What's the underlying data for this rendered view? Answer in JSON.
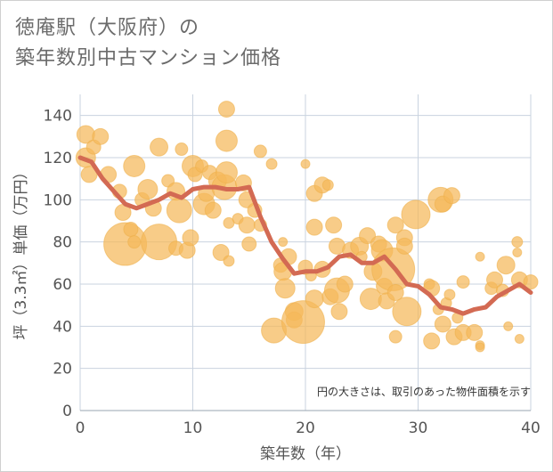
{
  "title_line1": "徳庵駅（大阪府）の",
  "title_line2": "築年数別中古マンション価格",
  "chart_data": {
    "type": "scatter",
    "xlabel": "築年数（年）",
    "ylabel": "坪（3.3㎡）単価（万円）",
    "xlim": [
      0,
      40
    ],
    "ylim": [
      0,
      150
    ],
    "xticks": [
      0,
      10,
      20,
      30,
      40
    ],
    "yticks": [
      0,
      20,
      40,
      60,
      80,
      100,
      120,
      140
    ],
    "grid": true,
    "note": "円の大きさは、取引のあった物件面積を示す",
    "bubble_color": "#f5b95a",
    "line_color": "#d36a53",
    "bubbles": [
      {
        "x": 0.5,
        "y": 131,
        "s": 10
      },
      {
        "x": 0.5,
        "y": 120,
        "s": 11
      },
      {
        "x": 0.8,
        "y": 112,
        "s": 9
      },
      {
        "x": 1.2,
        "y": 125,
        "s": 8
      },
      {
        "x": 1.8,
        "y": 130,
        "s": 9
      },
      {
        "x": 2.5,
        "y": 112,
        "s": 9
      },
      {
        "x": 3.5,
        "y": 104,
        "s": 8
      },
      {
        "x": 3.8,
        "y": 94,
        "s": 9
      },
      {
        "x": 4.0,
        "y": 79,
        "s": 24
      },
      {
        "x": 4.5,
        "y": 86,
        "s": 8
      },
      {
        "x": 4.8,
        "y": 80,
        "s": 7
      },
      {
        "x": 4.8,
        "y": 116,
        "s": 12
      },
      {
        "x": 5.5,
        "y": 100,
        "s": 8
      },
      {
        "x": 6.0,
        "y": 105,
        "s": 11
      },
      {
        "x": 6.5,
        "y": 96,
        "s": 9
      },
      {
        "x": 7.0,
        "y": 125,
        "s": 10
      },
      {
        "x": 7.0,
        "y": 80,
        "s": 20
      },
      {
        "x": 7.8,
        "y": 109,
        "s": 7
      },
      {
        "x": 8.5,
        "y": 104,
        "s": 10
      },
      {
        "x": 8.8,
        "y": 95,
        "s": 14
      },
      {
        "x": 8.5,
        "y": 77,
        "s": 8
      },
      {
        "x": 9.0,
        "y": 124,
        "s": 7
      },
      {
        "x": 9.5,
        "y": 76,
        "s": 9
      },
      {
        "x": 9.8,
        "y": 82,
        "s": 9
      },
      {
        "x": 10.0,
        "y": 116,
        "s": 12
      },
      {
        "x": 10.2,
        "y": 112,
        "s": 8
      },
      {
        "x": 10.8,
        "y": 116,
        "s": 7
      },
      {
        "x": 11.0,
        "y": 98,
        "s": 12
      },
      {
        "x": 11.2,
        "y": 103,
        "s": 9
      },
      {
        "x": 11.5,
        "y": 113,
        "s": 8
      },
      {
        "x": 11.8,
        "y": 95,
        "s": 9
      },
      {
        "x": 12.2,
        "y": 109,
        "s": 10
      },
      {
        "x": 12.5,
        "y": 75,
        "s": 9
      },
      {
        "x": 12.8,
        "y": 106,
        "s": 14
      },
      {
        "x": 13.0,
        "y": 143,
        "s": 9
      },
      {
        "x": 13.0,
        "y": 128,
        "s": 12
      },
      {
        "x": 13.0,
        "y": 113,
        "s": 12
      },
      {
        "x": 13.2,
        "y": 89,
        "s": 6
      },
      {
        "x": 13.2,
        "y": 71,
        "s": 6
      },
      {
        "x": 14.0,
        "y": 91,
        "s": 6
      },
      {
        "x": 14.5,
        "y": 108,
        "s": 9
      },
      {
        "x": 14.8,
        "y": 100,
        "s": 9
      },
      {
        "x": 14.8,
        "y": 88,
        "s": 9
      },
      {
        "x": 15.0,
        "y": 79,
        "s": 8
      },
      {
        "x": 15.5,
        "y": 95,
        "s": 8
      },
      {
        "x": 16.0,
        "y": 123,
        "s": 7
      },
      {
        "x": 16.0,
        "y": 88,
        "s": 7
      },
      {
        "x": 17.0,
        "y": 117,
        "s": 6
      },
      {
        "x": 17.2,
        "y": 38,
        "s": 14
      },
      {
        "x": 17.8,
        "y": 69,
        "s": 8
      },
      {
        "x": 18.0,
        "y": 80,
        "s": 5
      },
      {
        "x": 18.0,
        "y": 66,
        "s": 10
      },
      {
        "x": 18.2,
        "y": 58,
        "s": 11
      },
      {
        "x": 18.5,
        "y": 73,
        "s": 9
      },
      {
        "x": 19.0,
        "y": 47,
        "s": 10
      },
      {
        "x": 19.0,
        "y": 43,
        "s": 9
      },
      {
        "x": 19.8,
        "y": 42,
        "s": 24
      },
      {
        "x": 20.0,
        "y": 117,
        "s": 5
      },
      {
        "x": 20.0,
        "y": 68,
        "s": 8
      },
      {
        "x": 20.5,
        "y": 64,
        "s": 6
      },
      {
        "x": 20.8,
        "y": 103,
        "s": 9
      },
      {
        "x": 20.8,
        "y": 87,
        "s": 9
      },
      {
        "x": 20.8,
        "y": 53,
        "s": 10
      },
      {
        "x": 21.5,
        "y": 107,
        "s": 9
      },
      {
        "x": 21.5,
        "y": 67,
        "s": 9
      },
      {
        "x": 22.0,
        "y": 107,
        "s": 6
      },
      {
        "x": 22.2,
        "y": 54,
        "s": 9
      },
      {
        "x": 22.5,
        "y": 88,
        "s": 9
      },
      {
        "x": 22.8,
        "y": 78,
        "s": 9
      },
      {
        "x": 22.8,
        "y": 57,
        "s": 14
      },
      {
        "x": 23.0,
        "y": 47,
        "s": 9
      },
      {
        "x": 23.5,
        "y": 60,
        "s": 9
      },
      {
        "x": 24.0,
        "y": 76,
        "s": 9
      },
      {
        "x": 24.8,
        "y": 78,
        "s": 10
      },
      {
        "x": 25.0,
        "y": 73,
        "s": 6
      },
      {
        "x": 25.5,
        "y": 83,
        "s": 9
      },
      {
        "x": 25.8,
        "y": 53,
        "s": 12
      },
      {
        "x": 26.0,
        "y": 66,
        "s": 10
      },
      {
        "x": 26.5,
        "y": 79,
        "s": 9
      },
      {
        "x": 26.8,
        "y": 76,
        "s": 12
      },
      {
        "x": 27.0,
        "y": 59,
        "s": 9
      },
      {
        "x": 27.2,
        "y": 52,
        "s": 9
      },
      {
        "x": 27.8,
        "y": 67,
        "s": 24
      },
      {
        "x": 28.0,
        "y": 88,
        "s": 9
      },
      {
        "x": 28.0,
        "y": 56,
        "s": 9
      },
      {
        "x": 28.0,
        "y": 35,
        "s": 7
      },
      {
        "x": 28.8,
        "y": 82,
        "s": 9
      },
      {
        "x": 28.8,
        "y": 78,
        "s": 9
      },
      {
        "x": 29.0,
        "y": 47,
        "s": 16
      },
      {
        "x": 29.8,
        "y": 93,
        "s": 16
      },
      {
        "x": 31.0,
        "y": 60,
        "s": 6
      },
      {
        "x": 31.2,
        "y": 58,
        "s": 9
      },
      {
        "x": 31.2,
        "y": 33,
        "s": 9
      },
      {
        "x": 31.8,
        "y": 48,
        "s": 6
      },
      {
        "x": 32.0,
        "y": 100,
        "s": 14
      },
      {
        "x": 32.2,
        "y": 98,
        "s": 9
      },
      {
        "x": 32.2,
        "y": 41,
        "s": 9
      },
      {
        "x": 32.5,
        "y": 51,
        "s": 6
      },
      {
        "x": 32.8,
        "y": 55,
        "s": 6
      },
      {
        "x": 33.0,
        "y": 102,
        "s": 9
      },
      {
        "x": 33.2,
        "y": 35,
        "s": 9
      },
      {
        "x": 33.5,
        "y": 44,
        "s": 6
      },
      {
        "x": 34.0,
        "y": 61,
        "s": 7
      },
      {
        "x": 34.0,
        "y": 37,
        "s": 9
      },
      {
        "x": 35.0,
        "y": 37,
        "s": 9
      },
      {
        "x": 35.5,
        "y": 73,
        "s": 5
      },
      {
        "x": 35.5,
        "y": 31,
        "s": 5
      },
      {
        "x": 35.5,
        "y": 30,
        "s": 5
      },
      {
        "x": 36.5,
        "y": 58,
        "s": 7
      },
      {
        "x": 36.8,
        "y": 62,
        "s": 9
      },
      {
        "x": 37.8,
        "y": 69,
        "s": 10
      },
      {
        "x": 37.5,
        "y": 57,
        "s": 7
      },
      {
        "x": 38.0,
        "y": 40,
        "s": 5
      },
      {
        "x": 38.8,
        "y": 80,
        "s": 6
      },
      {
        "x": 38.8,
        "y": 75,
        "s": 5
      },
      {
        "x": 39.0,
        "y": 34,
        "s": 5
      },
      {
        "x": 39.0,
        "y": 62,
        "s": 9
      },
      {
        "x": 40.0,
        "y": 61,
        "s": 8
      }
    ],
    "trend": {
      "x": [
        0,
        1,
        2,
        3,
        4,
        5,
        6,
        7,
        8,
        9,
        10,
        11,
        12,
        13,
        14,
        15,
        16,
        17,
        18,
        19,
        20,
        21,
        22,
        23,
        24,
        25,
        26,
        27,
        28,
        29,
        30,
        31,
        32,
        33,
        34,
        35,
        36,
        37,
        38,
        39,
        40
      ],
      "y": [
        120,
        118,
        110,
        104,
        98,
        96,
        98,
        100,
        103,
        101,
        105,
        106,
        106,
        105,
        105,
        106,
        92,
        80,
        72,
        65,
        66,
        66,
        68,
        73,
        74,
        70,
        70,
        73,
        67,
        60,
        59,
        55,
        49,
        48,
        46,
        48,
        49,
        54,
        57,
        60,
        56
      ]
    }
  }
}
